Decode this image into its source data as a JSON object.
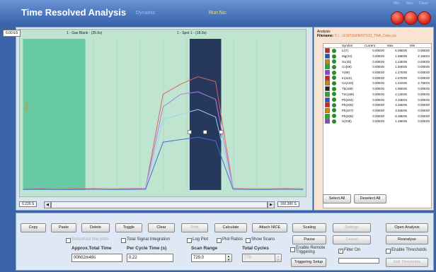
{
  "app": {
    "title": "Time Resolved Analysis",
    "subtitle": "Dynamic",
    "run_label": "Run No:",
    "window_tiny": [
      "Min",
      "Max",
      "Close"
    ]
  },
  "chart": {
    "y_label": "6.00 E5",
    "y_axis": "LR(S)",
    "x_min": "0.220 S",
    "x_max": "160.300 S",
    "segments": [
      {
        "label": "1 - Gas Blank - (35.6s)"
      },
      {
        "label": "1 - Spot 1 - (18.0s)"
      }
    ]
  },
  "chart_data": {
    "type": "line",
    "title": "",
    "xlabel": "",
    "ylabel": "LR(S)",
    "xlim": [
      0.22,
      160.3
    ],
    "ylim": [
      0,
      600000
    ],
    "x": [
      0,
      10,
      20,
      30,
      40,
      50,
      60,
      70,
      80,
      90,
      100,
      110,
      120,
      130,
      140,
      150,
      160
    ],
    "series": [
      {
        "values": [
          5000,
          6000,
          5000,
          6000,
          6000,
          5000,
          6000,
          7000,
          380000,
          420000,
          450000,
          430000,
          7000,
          5000,
          5000,
          6000,
          5000
        ]
      },
      {
        "values": [
          4000,
          5000,
          4000,
          4000,
          5000,
          4000,
          5000,
          6000,
          330000,
          380000,
          390000,
          360000,
          6000,
          4000,
          4000,
          5000,
          4000
        ]
      },
      {
        "values": [
          3000,
          4000,
          3000,
          3000,
          4000,
          3000,
          3000,
          5000,
          280000,
          300000,
          320000,
          290000,
          5000,
          3000,
          3000,
          4000,
          3000
        ]
      },
      {
        "values": [
          2000,
          3000,
          2000,
          2000,
          3000,
          2000,
          2000,
          3000,
          190000,
          200000,
          210000,
          195000,
          3000,
          2000,
          2000,
          3000,
          2000
        ]
      }
    ],
    "grid": true,
    "highlight_regions": [
      [
        0,
        35.6
      ],
      [
        95.2,
        113.2
      ]
    ]
  },
  "analysis": {
    "header": "Analysis",
    "filename_label": "Filename:",
    "filename": "C:\\...\\GSD\\Std\\NIST612_TRA_Data.csv",
    "columns": [
      "Symbol",
      "Current",
      "Max",
      "Min"
    ],
    "rows": [
      {
        "sym": "Li(7)",
        "cur": "0.00E00",
        "max": "6.06E05",
        "min": "0.00E00",
        "color": "#cc2222"
      },
      {
        "sym": "Mg(24)",
        "cur": "0.00E00",
        "max": "1.59E06",
        "min": "2.16E04",
        "color": "#2255cc"
      },
      {
        "sym": "Sc(45)",
        "cur": "0.00E00",
        "max": "1.23E06",
        "min": "0.00E00",
        "color": "#cc8800"
      },
      {
        "sym": "Co(59)",
        "cur": "0.00E00",
        "max": "1.60E06",
        "min": "0.00E00",
        "color": "#22aa22"
      },
      {
        "sym": "Y(89)",
        "cur": "0.00E00",
        "max": "1.47E06",
        "min": "0.00E00",
        "color": "#8844cc"
      },
      {
        "sym": "In(115)",
        "cur": "0.00E00",
        "max": "1.67E06",
        "min": "0.00E00",
        "color": "#cc2222"
      },
      {
        "sym": "Ce(133)",
        "cur": "0.00E00",
        "max": "1.41E06",
        "min": "2.76E03",
        "color": "#cc8800"
      },
      {
        "sym": "Tb(159)",
        "cur": "0.00E00",
        "max": "1.96E06",
        "min": "0.00E00",
        "color": "#222222"
      },
      {
        "sym": "Tm(169)",
        "cur": "0.00E00",
        "max": "2.12E06",
        "min": "0.00E00",
        "color": "#22aa22"
      },
      {
        "sym": "Pb(204)",
        "cur": "0.00E00",
        "max": "3.33E04",
        "min": "0.00E00",
        "color": "#2255cc"
      },
      {
        "sym": "Pb(206)",
        "cur": "0.00E00",
        "max": "4.26E05",
        "min": "0.00E00",
        "color": "#cc2222"
      },
      {
        "sym": "Pb(207)",
        "cur": "0.00E00",
        "max": "3.50E05",
        "min": "0.00E00",
        "color": "#cc8800"
      },
      {
        "sym": "Pb(208)",
        "cur": "0.00E00",
        "max": "8.39E05",
        "min": "0.00E00",
        "color": "#22aa22"
      },
      {
        "sym": "U(238)",
        "cur": "0.00E00",
        "max": "1.49E06",
        "min": "0.00E00",
        "color": "#8844cc"
      }
    ],
    "select_all": "Select All",
    "deselect_all": "Deselect All"
  },
  "controls": {
    "buttons": {
      "copy": "Copy",
      "paste": "Paste",
      "delete": "Delete",
      "toggle": "Toggle",
      "clear": "Clear",
      "print": "Print",
      "calculate": "Calculate",
      "attach_nice": "Attach NICE",
      "scaling": "Scaling",
      "grey": "Settings",
      "open_analysis": "Open Analysis",
      "pause": "Pause",
      "cancel": "Cancel",
      "reanalyse": "Reanalyse",
      "triggering_setup": "Triggering Setup",
      "edit_thresholds": "Edit Thresholds"
    },
    "checks": {
      "smooth": "Smoothed line plots",
      "total_signal": "Total Signal Integration",
      "log_plot": "Log Plot",
      "plot_ratios": "Plot Ratios",
      "show_scans": "Show Scans",
      "enable_remote": "Enable Remote Triggering",
      "filter_on": "Filter On",
      "enable_thresholds": "Enable Thresholds"
    },
    "approx_total_time_label": "Approx.Total Time",
    "approx_total_time": "00h02m49s",
    "per_cycle_label": "Per Cycle Time (s)",
    "per_cycle": "0.22",
    "scan_range_label": "Scan Range",
    "scan_range": "729.0",
    "total_cycles_label": "Total Cycles",
    "total_cycles": "770"
  }
}
